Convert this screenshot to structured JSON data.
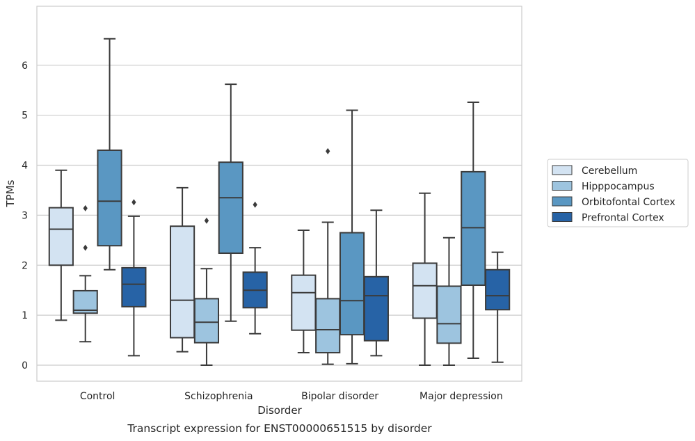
{
  "chart_data": {
    "type": "box",
    "xlabel": "Disorder",
    "ylabel": "TPMs",
    "caption": "Transcript expression for ENST00000651515 by disorder",
    "ylim": [
      -0.32,
      7.18
    ],
    "yticks": [
      "0",
      "1",
      "2",
      "3",
      "4",
      "5",
      "6"
    ],
    "grid": true,
    "legend_position": "right",
    "categories": [
      "Control",
      "Schizophrenia",
      "Bipolar disorder",
      "Major depression"
    ],
    "series": [
      {
        "name": "Cerebellum",
        "color": "#d3e3f2",
        "boxes": [
          {
            "whislo": 0.9,
            "q1": 2.0,
            "med": 2.72,
            "q3": 3.15,
            "whishi": 3.9,
            "fliers": []
          },
          {
            "whislo": 0.27,
            "q1": 0.55,
            "med": 1.3,
            "q3": 2.78,
            "whishi": 3.55,
            "fliers": []
          },
          {
            "whislo": 0.25,
            "q1": 0.7,
            "med": 1.45,
            "q3": 1.8,
            "whishi": 2.7,
            "fliers": []
          },
          {
            "whislo": 0.0,
            "q1": 0.94,
            "med": 1.59,
            "q3": 2.04,
            "whishi": 3.44,
            "fliers": []
          }
        ]
      },
      {
        "name": "Hipppocampus",
        "color": "#9dc4df",
        "boxes": [
          {
            "whislo": 0.47,
            "q1": 1.04,
            "med": 1.1,
            "q3": 1.49,
            "whishi": 1.79,
            "fliers": [
              2.35,
              3.14
            ]
          },
          {
            "whislo": 0.0,
            "q1": 0.45,
            "med": 0.86,
            "q3": 1.33,
            "whishi": 1.93,
            "fliers": [
              2.89
            ]
          },
          {
            "whislo": 0.02,
            "q1": 0.25,
            "med": 0.71,
            "q3": 1.33,
            "whishi": 2.86,
            "fliers": [
              4.28
            ]
          },
          {
            "whislo": 0.0,
            "q1": 0.44,
            "med": 0.83,
            "q3": 1.58,
            "whishi": 2.55,
            "fliers": []
          }
        ]
      },
      {
        "name": "Orbitofontal Cortex",
        "color": "#5a97c2",
        "boxes": [
          {
            "whislo": 1.91,
            "q1": 2.39,
            "med": 3.28,
            "q3": 4.3,
            "whishi": 6.53,
            "fliers": []
          },
          {
            "whislo": 0.88,
            "q1": 2.24,
            "med": 3.35,
            "q3": 4.06,
            "whishi": 5.62,
            "fliers": []
          },
          {
            "whislo": 0.03,
            "q1": 0.61,
            "med": 1.29,
            "q3": 2.65,
            "whishi": 5.1,
            "fliers": []
          },
          {
            "whislo": 0.14,
            "q1": 1.6,
            "med": 2.75,
            "q3": 3.87,
            "whishi": 5.26,
            "fliers": []
          }
        ]
      },
      {
        "name": "Prefrontal Cortex",
        "color": "#2763a6",
        "boxes": [
          {
            "whislo": 0.19,
            "q1": 1.17,
            "med": 1.62,
            "q3": 1.95,
            "whishi": 2.98,
            "fliers": [
              3.26
            ]
          },
          {
            "whislo": 0.63,
            "q1": 1.15,
            "med": 1.5,
            "q3": 1.86,
            "whishi": 2.35,
            "fliers": [
              3.21
            ]
          },
          {
            "whislo": 0.19,
            "q1": 0.49,
            "med": 1.39,
            "q3": 1.77,
            "whishi": 3.1,
            "fliers": []
          },
          {
            "whislo": 0.06,
            "q1": 1.11,
            "med": 1.39,
            "q3": 1.91,
            "whishi": 2.26,
            "fliers": []
          }
        ]
      }
    ]
  }
}
